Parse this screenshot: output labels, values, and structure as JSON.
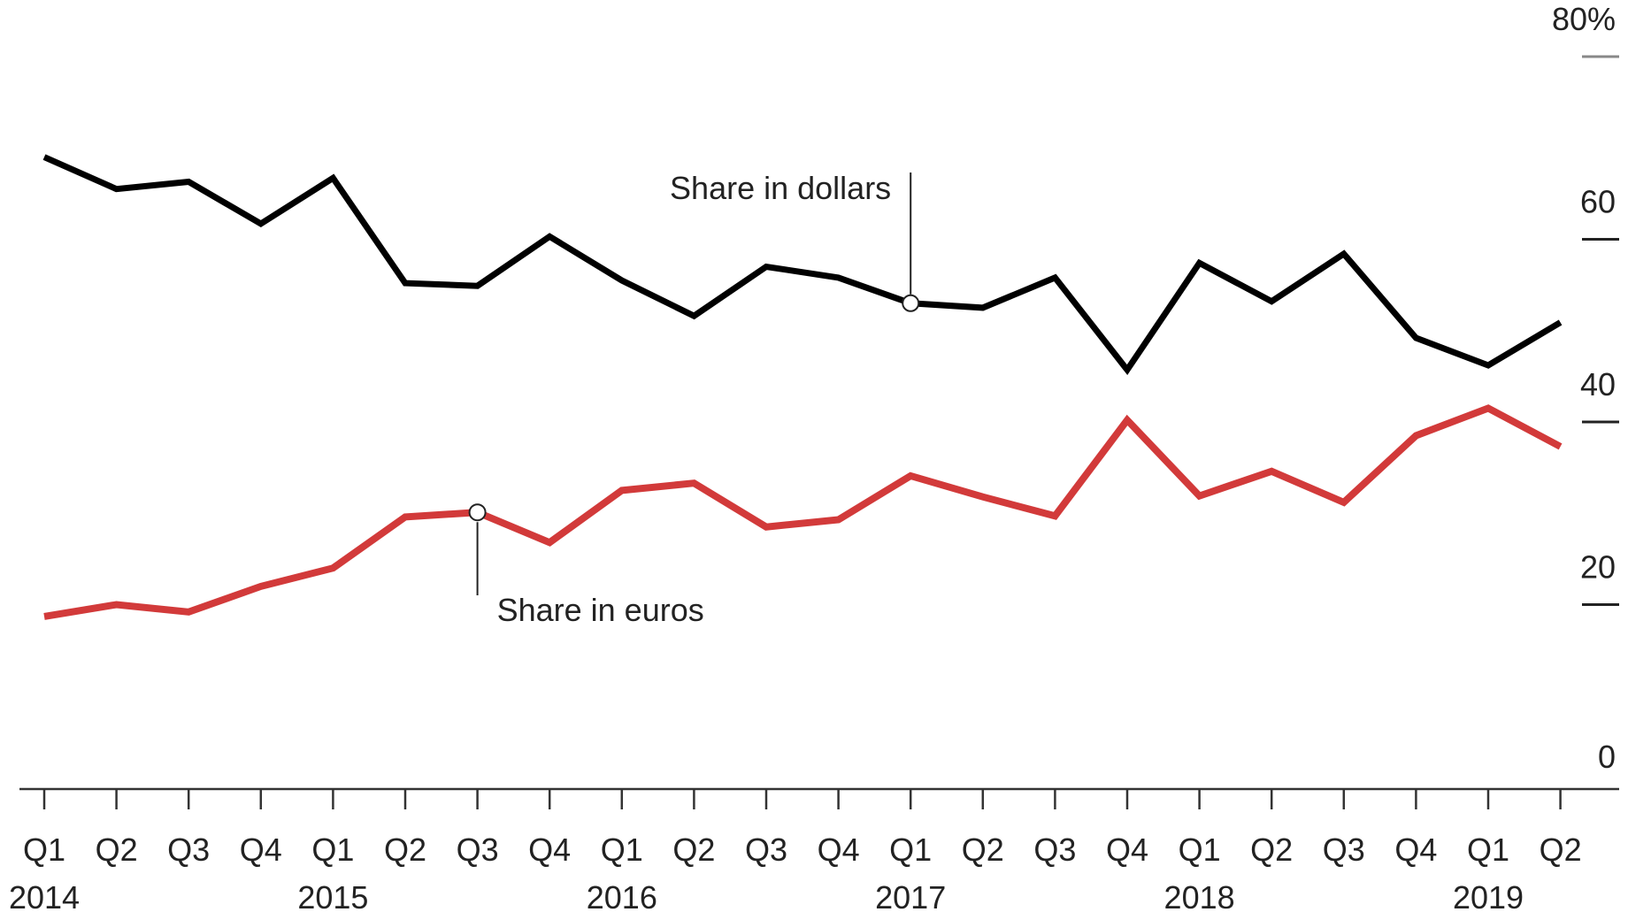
{
  "chart_data": {
    "type": "line",
    "title": "",
    "xlabel": "",
    "ylabel": "",
    "ylim": [
      0,
      80
    ],
    "y_ticks": [
      {
        "value": 0,
        "label": "0"
      },
      {
        "value": 20,
        "label": "20"
      },
      {
        "value": 40,
        "label": "40"
      },
      {
        "value": 60,
        "label": "60"
      },
      {
        "value": 80,
        "label": "80%"
      }
    ],
    "x_ticks": [
      "Q1",
      "Q2",
      "Q3",
      "Q4",
      "Q1",
      "Q2",
      "Q3",
      "Q4",
      "Q1",
      "Q2",
      "Q3",
      "Q4",
      "Q1",
      "Q2",
      "Q3",
      "Q4",
      "Q1",
      "Q2",
      "Q3",
      "Q4",
      "Q1",
      "Q2"
    ],
    "year_labels": [
      {
        "index": 0,
        "label": "2014"
      },
      {
        "index": 4,
        "label": "2015"
      },
      {
        "index": 8,
        "label": "2016"
      },
      {
        "index": 12,
        "label": "2017"
      },
      {
        "index": 16,
        "label": "2018"
      },
      {
        "index": 20,
        "label": "2019"
      }
    ],
    "series": [
      {
        "key": "dollars",
        "color": "#000000",
        "values": [
          69.0,
          65.5,
          66.3,
          61.7,
          66.7,
          55.2,
          54.9,
          60.3,
          55.5,
          51.6,
          57.0,
          55.8,
          53.0,
          52.5,
          55.8,
          45.7,
          57.4,
          53.2,
          58.4,
          49.2,
          46.2,
          50.9
        ]
      },
      {
        "key": "euros",
        "color": "#d23a3a",
        "values": [
          18.7,
          20.0,
          19.2,
          22.0,
          24.0,
          29.6,
          30.1,
          26.8,
          32.5,
          33.3,
          28.5,
          29.3,
          34.1,
          31.8,
          29.7,
          40.2,
          31.9,
          34.6,
          31.2,
          38.5,
          41.5,
          37.3
        ]
      }
    ],
    "annotations": [
      {
        "series": "dollars",
        "index": 12,
        "text": "Share in dollars"
      },
      {
        "series": "euros",
        "index": 6,
        "text": "Share in euros"
      }
    ],
    "grid": false,
    "legend": "none"
  }
}
